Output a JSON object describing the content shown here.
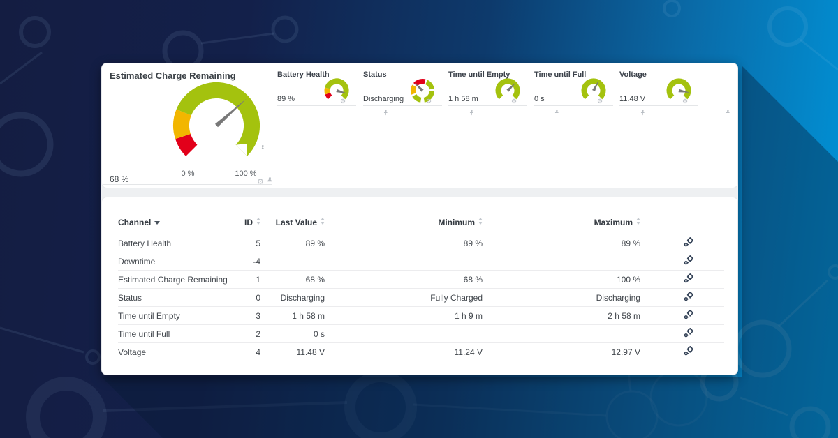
{
  "colors": {
    "gauge_green": "#a4c20e",
    "gauge_amber": "#f2b600",
    "gauge_red": "#e2001a",
    "needle": "#787878",
    "table_icon": "#2f3e53"
  },
  "gauges": {
    "large": {
      "title": "Estimated Charge Remaining",
      "value": "68 %",
      "scale_min": "0 %",
      "scale_max": "100 %",
      "avg_marker": "x̄",
      "needle_deg": 48,
      "segments": [
        {
          "from": 225,
          "to": 252,
          "color": "#e2001a"
        },
        {
          "from": 252,
          "to": 292,
          "color": "#f2b600"
        },
        {
          "from": 292,
          "to": 495,
          "color": "#a4c20e"
        }
      ]
    },
    "small": [
      {
        "title": "Battery Health",
        "value": "89 %",
        "needle_deg": 105,
        "segments": [
          {
            "from": 225,
            "to": 252,
            "color": "#e2001a"
          },
          {
            "from": 252,
            "to": 285,
            "color": "#f2b600"
          },
          {
            "from": 285,
            "to": 495,
            "color": "#a4c20e"
          }
        ]
      },
      {
        "title": "Status",
        "value": "Discharging",
        "needle_deg": 315,
        "segments": [
          {
            "from": 310,
            "to": 375,
            "color": "#e2001a"
          },
          {
            "from": 25,
            "to": 80,
            "color": "#a4c20e"
          },
          {
            "from": 90,
            "to": 170,
            "color": "#a4c20e"
          },
          {
            "from": 190,
            "to": 240,
            "color": "#a4c20e"
          },
          {
            "from": 250,
            "to": 300,
            "color": "#f2b600"
          }
        ]
      },
      {
        "title": "Time until Empty",
        "value": "1 h 58 m",
        "needle_deg": 45,
        "segments": [
          {
            "from": 225,
            "to": 495,
            "color": "#a4c20e"
          }
        ]
      },
      {
        "title": "Time until Full",
        "value": "0 s",
        "needle_deg": 27,
        "segments": [
          {
            "from": 225,
            "to": 495,
            "color": "#a4c20e"
          }
        ]
      },
      {
        "title": "Voltage",
        "value": "11.48 V",
        "needle_deg": 100,
        "segments": [
          {
            "from": 225,
            "to": 495,
            "color": "#a4c20e"
          }
        ]
      }
    ]
  },
  "table": {
    "headers": {
      "channel": "Channel",
      "id": "ID",
      "last_value": "Last Value",
      "minimum": "Minimum",
      "maximum": "Maximum"
    },
    "sorted_by": "Channel",
    "rows": [
      {
        "channel": "Battery Health",
        "id": "5",
        "last": "89 %",
        "min": "89 %",
        "max": "89 %"
      },
      {
        "channel": "Downtime",
        "id": "-4",
        "last": "",
        "min": "",
        "max": ""
      },
      {
        "channel": "Estimated Charge Remaining",
        "id": "1",
        "last": "68 %",
        "min": "68 %",
        "max": "100 %"
      },
      {
        "channel": "Status",
        "id": "0",
        "last": "Discharging",
        "min": "Fully Charged",
        "max": "Discharging"
      },
      {
        "channel": "Time until Empty",
        "id": "3",
        "last": "1 h 58 m",
        "min": "1 h 9 m",
        "max": "2 h 58 m"
      },
      {
        "channel": "Time until Full",
        "id": "2",
        "last": "0 s",
        "min": "",
        "max": ""
      },
      {
        "channel": "Voltage",
        "id": "4",
        "last": "11.48 V",
        "min": "11.24 V",
        "max": "12.97 V"
      }
    ]
  }
}
